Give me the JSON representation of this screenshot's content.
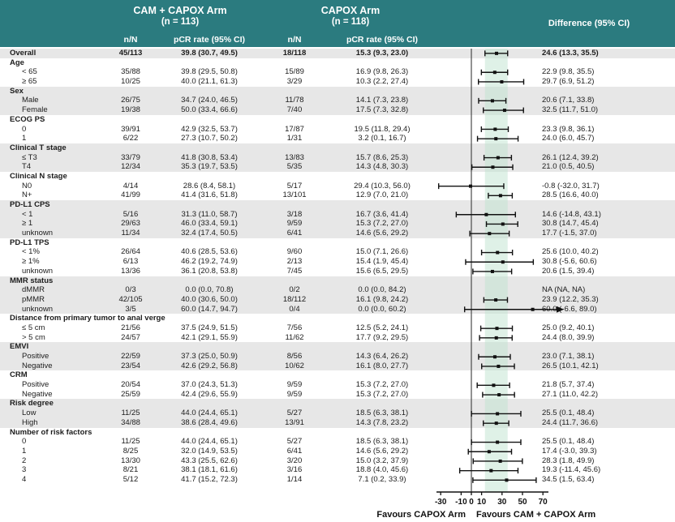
{
  "header": {
    "arm1_title": "CAM + CAPOX Arm",
    "arm1_n": "(n = 113)",
    "arm2_title": "CAPOX Arm",
    "arm2_n": "(n = 118)",
    "col_nn": "n/N",
    "col_pcr": "pCR rate (95% CI)",
    "col_diff": "Difference (95% CI)"
  },
  "colors": {
    "header_bg": "#2b7b7f",
    "stripe": "#e7e7e7",
    "band": "#bfe3cf",
    "text": "#1c1c1c",
    "marker": "#111111",
    "header_text": "#ffffff"
  },
  "chart_data": {
    "type": "forest",
    "title": "",
    "xlim": [
      -33,
      75
    ],
    "ticks": [
      -30,
      -10,
      0,
      10,
      30,
      50,
      70
    ],
    "refline": 0,
    "overall_ci_band": [
      13.3,
      35.5
    ],
    "favours_left": "Favours CAPOX Arm",
    "favours_right": "Favours CAM + CAPOX Arm",
    "rows": [
      {
        "t": "overall",
        "label": "Overall",
        "n1": "45/113",
        "p1": "39.8 (30.7, 49.5)",
        "n2": "18/118",
        "p2": "15.3 (9.3, 23.0)",
        "d": "24.6 (13.3, 35.5)",
        "e": 24.6,
        "lo": 13.3,
        "hi": 35.5
      },
      {
        "t": "section",
        "label": "Age"
      },
      {
        "t": "item",
        "label": "< 65",
        "n1": "35/88",
        "p1": "39.8 (29.5, 50.8)",
        "n2": "15/89",
        "p2": "16.9 (9.8, 26.3)",
        "d": "22.9 (9.8, 35.5)",
        "e": 22.9,
        "lo": 9.8,
        "hi": 35.5
      },
      {
        "t": "item",
        "label": "≥ 65",
        "n1": "10/25",
        "p1": "40.0 (21.1, 61.3)",
        "n2": "3/29",
        "p2": "10.3 (2.2, 27.4)",
        "d": "29.7 (6.9, 51.2)",
        "e": 29.7,
        "lo": 6.9,
        "hi": 51.2
      },
      {
        "t": "section",
        "label": "Sex"
      },
      {
        "t": "item",
        "label": "Male",
        "n1": "26/75",
        "p1": "34.7 (24.0, 46.5)",
        "n2": "11/78",
        "p2": "14.1 (7.3, 23.8)",
        "d": "20.6 (7.1, 33.8)",
        "e": 20.6,
        "lo": 7.1,
        "hi": 33.8
      },
      {
        "t": "item",
        "label": "Female",
        "n1": "19/38",
        "p1": "50.0 (33.4, 66.6)",
        "n2": "7/40",
        "p2": "17.5 (7.3, 32.8)",
        "d": "32.5 (11.7, 51.0)",
        "e": 32.5,
        "lo": 11.7,
        "hi": 51.0
      },
      {
        "t": "section",
        "label": "ECOG PS"
      },
      {
        "t": "item",
        "label": "0",
        "n1": "39/91",
        "p1": "42.9 (32.5, 53.7)",
        "n2": "17/87",
        "p2": "19.5 (11.8, 29.4)",
        "d": "23.3 (9.8, 36.1)",
        "e": 23.3,
        "lo": 9.8,
        "hi": 36.1
      },
      {
        "t": "item",
        "label": "1",
        "n1": "6/22",
        "p1": "27.3 (10.7, 50.2)",
        "n2": "1/31",
        "p2": "3.2 (0.1, 16.7)",
        "d": "24.0 (6.0, 45.7)",
        "e": 24.0,
        "lo": 6.0,
        "hi": 45.7
      },
      {
        "t": "section",
        "label": "Clinical T stage"
      },
      {
        "t": "item",
        "label": "≤ T3",
        "n1": "33/79",
        "p1": "41.8 (30.8, 53.4)",
        "n2": "13/83",
        "p2": "15.7 (8.6, 25.3)",
        "d": "26.1 (12.4, 39.2)",
        "e": 26.1,
        "lo": 12.4,
        "hi": 39.2
      },
      {
        "t": "item",
        "label": "T4",
        "n1": "12/34",
        "p1": "35.3 (19.7, 53.5)",
        "n2": "5/35",
        "p2": "14.3 (4.8, 30.3)",
        "d": "21.0 (0.5, 40.5)",
        "e": 21.0,
        "lo": 0.5,
        "hi": 40.5
      },
      {
        "t": "section",
        "label": "Clinical N stage"
      },
      {
        "t": "item",
        "label": "N0",
        "n1": "4/14",
        "p1": "28.6 (8.4, 58.1)",
        "n2": "5/17",
        "p2": "29.4 (10.3, 56.0)",
        "d": "-0.8 (-32.0, 31.7)",
        "e": -0.8,
        "lo": -32.0,
        "hi": 31.7
      },
      {
        "t": "item",
        "label": "N+",
        "n1": "41/99",
        "p1": "41.4 (31.6, 51.8)",
        "n2": "13/101",
        "p2": "12.9 (7.0, 21.0)",
        "d": "28.5 (16.6, 40.0)",
        "e": 28.5,
        "lo": 16.6,
        "hi": 40.0
      },
      {
        "t": "section",
        "label": "PD-L1 CPS"
      },
      {
        "t": "item",
        "label": "< 1",
        "n1": "5/16",
        "p1": "31.3 (11.0, 58.7)",
        "n2": "3/18",
        "p2": "16.7 (3.6, 41.4)",
        "d": "14.6 (-14.8, 43.1)",
        "e": 14.6,
        "lo": -14.8,
        "hi": 43.1
      },
      {
        "t": "item",
        "label": "≥ 1",
        "n1": "29/63",
        "p1": "46.0 (33.4, 59.1)",
        "n2": "9/59",
        "p2": "15.3 (7.2, 27.0)",
        "d": "30.8 (14.7, 45.4)",
        "e": 30.8,
        "lo": 14.7,
        "hi": 45.4
      },
      {
        "t": "item",
        "label": "unknown",
        "n1": "11/34",
        "p1": "32.4 (17.4, 50.5)",
        "n2": "6/41",
        "p2": "14.6 (5.6, 29.2)",
        "d": "17.7 (-1.5, 37.0)",
        "e": 17.7,
        "lo": -1.5,
        "hi": 37.0
      },
      {
        "t": "section",
        "label": "PD-L1 TPS"
      },
      {
        "t": "item",
        "label": "< 1%",
        "n1": "26/64",
        "p1": "40.6 (28.5, 53.6)",
        "n2": "9/60",
        "p2": "15.0 (7.1, 26.6)",
        "d": "25.6 (10.0, 40.2)",
        "e": 25.6,
        "lo": 10.0,
        "hi": 40.2
      },
      {
        "t": "item",
        "label": "≥ 1%",
        "n1": "6/13",
        "p1": "46.2 (19.2, 74.9)",
        "n2": "2/13",
        "p2": "15.4 (1.9, 45.4)",
        "d": "30.8 (-5.6, 60.6)",
        "e": 30.8,
        "lo": -5.6,
        "hi": 60.6
      },
      {
        "t": "item",
        "label": "unknown",
        "n1": "13/36",
        "p1": "36.1 (20.8, 53.8)",
        "n2": "7/45",
        "p2": "15.6 (6.5, 29.5)",
        "d": "20.6 (1.5, 39.4)",
        "e": 20.6,
        "lo": 1.5,
        "hi": 39.4
      },
      {
        "t": "section",
        "label": "MMR status"
      },
      {
        "t": "item",
        "label": "dMMR",
        "n1": "0/3",
        "p1": "0.0 (0.0, 70.8)",
        "n2": "0/2",
        "p2": "0.0 (0.0, 84.2)",
        "d": "NA (NA, NA)",
        "e": null,
        "lo": null,
        "hi": null
      },
      {
        "t": "item",
        "label": "pMMR",
        "n1": "42/105",
        "p1": "40.0 (30.6, 50.0)",
        "n2": "18/112",
        "p2": "16.1 (9.8, 24.2)",
        "d": "23.9 (12.2, 35.3)",
        "e": 23.9,
        "lo": 12.2,
        "hi": 35.3
      },
      {
        "t": "item",
        "label": "unknown",
        "n1": "3/5",
        "p1": "60.0 (14.7, 94.7)",
        "n2": "0/4",
        "p2": "0.0 (0.0, 60.2)",
        "d": "60.0 (-6.6, 89.0)",
        "e": 60.0,
        "lo": -6.6,
        "hi": 89.0
      },
      {
        "t": "section",
        "label": "Distance from primary tumor to anal verge"
      },
      {
        "t": "item",
        "label": "≤ 5 cm",
        "n1": "21/56",
        "p1": "37.5 (24.9, 51.5)",
        "n2": "7/56",
        "p2": "12.5 (5.2, 24.1)",
        "d": "25.0 (9.2, 40.1)",
        "e": 25.0,
        "lo": 9.2,
        "hi": 40.1
      },
      {
        "t": "item",
        "label": "> 5 cm",
        "n1": "24/57",
        "p1": "42.1 (29.1, 55.9)",
        "n2": "11/62",
        "p2": "17.7 (9.2, 29.5)",
        "d": "24.4 (8.0, 39.9)",
        "e": 24.4,
        "lo": 8.0,
        "hi": 39.9
      },
      {
        "t": "section",
        "label": "EMVI"
      },
      {
        "t": "item",
        "label": "Positive",
        "n1": "22/59",
        "p1": "37.3 (25.0, 50.9)",
        "n2": "8/56",
        "p2": "14.3 (6.4, 26.2)",
        "d": "23.0 (7.1, 38.1)",
        "e": 23.0,
        "lo": 7.1,
        "hi": 38.1
      },
      {
        "t": "item",
        "label": "Negative",
        "n1": "23/54",
        "p1": "42.6 (29.2, 56.8)",
        "n2": "10/62",
        "p2": "16.1 (8.0, 27.7)",
        "d": "26.5 (10.1, 42.1)",
        "e": 26.5,
        "lo": 10.1,
        "hi": 42.1
      },
      {
        "t": "section",
        "label": "CRM"
      },
      {
        "t": "item",
        "label": "Positive",
        "n1": "20/54",
        "p1": "37.0 (24.3, 51.3)",
        "n2": "9/59",
        "p2": "15.3 (7.2, 27.0)",
        "d": "21.8 (5.7, 37.4)",
        "e": 21.8,
        "lo": 5.7,
        "hi": 37.4
      },
      {
        "t": "item",
        "label": "Negative",
        "n1": "25/59",
        "p1": "42.4 (29.6, 55.9)",
        "n2": "9/59",
        "p2": "15.3 (7.2, 27.0)",
        "d": "27.1 (11.0, 42.2)",
        "e": 27.1,
        "lo": 11.0,
        "hi": 42.2
      },
      {
        "t": "section",
        "label": "Risk degree"
      },
      {
        "t": "item",
        "label": "Low",
        "n1": "11/25",
        "p1": "44.0 (24.4, 65.1)",
        "n2": "5/27",
        "p2": "18.5 (6.3, 38.1)",
        "d": "25.5 (0.1, 48.4)",
        "e": 25.5,
        "lo": 0.1,
        "hi": 48.4
      },
      {
        "t": "item",
        "label": "High",
        "n1": "34/88",
        "p1": "38.6 (28.4, 49.6)",
        "n2": "13/91",
        "p2": "14.3 (7.8, 23.2)",
        "d": "24.4 (11.7, 36.6)",
        "e": 24.4,
        "lo": 11.7,
        "hi": 36.6
      },
      {
        "t": "section",
        "label": "Number of risk factors"
      },
      {
        "t": "item",
        "label": "0",
        "n1": "11/25",
        "p1": "44.0 (24.4, 65.1)",
        "n2": "5/27",
        "p2": "18.5 (6.3, 38.1)",
        "d": "25.5 (0.1, 48.4)",
        "e": 25.5,
        "lo": 0.1,
        "hi": 48.4
      },
      {
        "t": "item",
        "label": "1",
        "n1": "8/25",
        "p1": "32.0 (14.9, 53.5)",
        "n2": "6/41",
        "p2": "14.6 (5.6, 29.2)",
        "d": "17.4 (-3.0, 39.3)",
        "e": 17.4,
        "lo": -3.0,
        "hi": 39.3
      },
      {
        "t": "item",
        "label": "2",
        "n1": "13/30",
        "p1": "43.3 (25.5, 62.6)",
        "n2": "3/20",
        "p2": "15.0 (3.2, 37.9)",
        "d": "28.3 (1.8, 49.9)",
        "e": 28.3,
        "lo": 1.8,
        "hi": 49.9
      },
      {
        "t": "item",
        "label": "3",
        "n1": "8/21",
        "p1": "38.1 (18.1, 61.6)",
        "n2": "3/16",
        "p2": "18.8 (4.0, 45.6)",
        "d": "19.3 (-11.4, 45.6)",
        "e": 19.3,
        "lo": -11.4,
        "hi": 45.6
      },
      {
        "t": "item",
        "label": "4",
        "n1": "5/12",
        "p1": "41.7 (15.2, 72.3)",
        "n2": "1/14",
        "p2": "7.1 (0.2, 33.9)",
        "d": "34.5 (1.5, 63.4)",
        "e": 34.5,
        "lo": 1.5,
        "hi": 63.4
      }
    ]
  }
}
